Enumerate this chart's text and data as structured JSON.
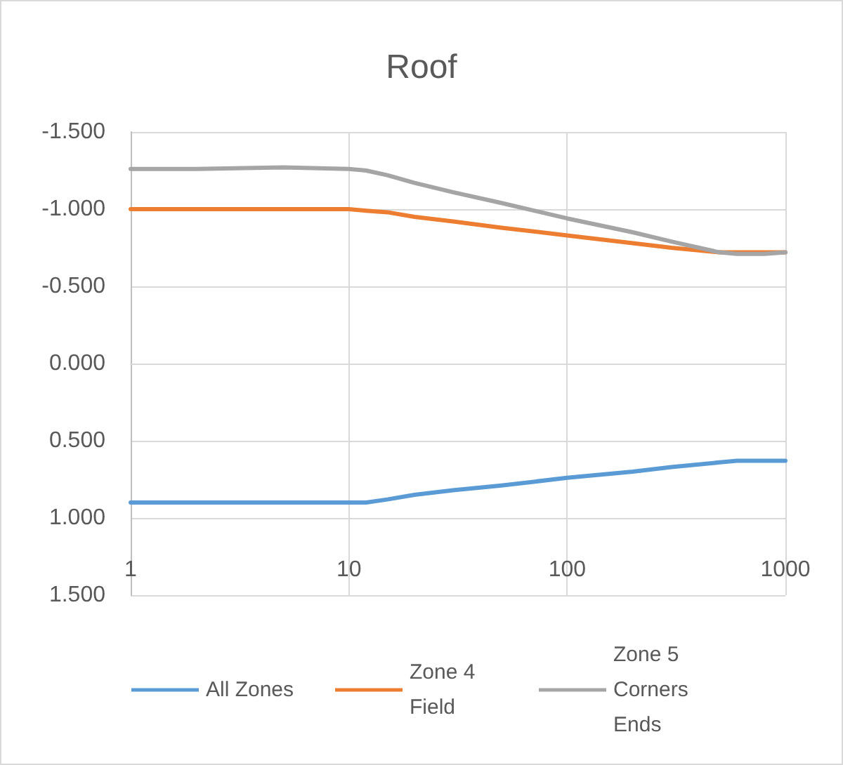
{
  "chart_data": {
    "type": "line",
    "title": "Roof",
    "log": "x",
    "grid": true,
    "legend": "bottom",
    "marker": "none",
    "line_style": "solid",
    "x": [
      1,
      2,
      5,
      10,
      12,
      15,
      20,
      30,
      50,
      100,
      200,
      300,
      500,
      600,
      800,
      1000
    ],
    "xlim": [
      1,
      1000
    ],
    "xticks": [
      1,
      10,
      100,
      1000
    ],
    "ylim": [
      1.5,
      -1.5
    ],
    "yticks": [
      {
        "value": -1.5,
        "label": "-1.500"
      },
      {
        "value": -1,
        "label": "-1.000"
      },
      {
        "value": -0.5,
        "label": "-0.500"
      },
      {
        "value": 0,
        "label": "0.000"
      },
      {
        "value": 0.5,
        "label": "0.500"
      },
      {
        "value": 1,
        "label": "1.000"
      },
      {
        "value": 1.5,
        "label": "1.500"
      }
    ],
    "series": [
      {
        "name": "All Zones",
        "color": "#5b9bd5",
        "values": [
          0.9,
          0.9,
          0.9,
          0.9,
          0.9,
          0.88,
          0.85,
          0.82,
          0.79,
          0.74,
          0.7,
          0.67,
          0.64,
          0.63,
          0.63,
          0.63
        ]
      },
      {
        "name": "Zone 4 Field",
        "color": "#ed7d31",
        "values": [
          -1.0,
          -1.0,
          -1.0,
          -1.0,
          -0.99,
          -0.98,
          -0.95,
          -0.92,
          -0.88,
          -0.83,
          -0.78,
          -0.75,
          -0.72,
          -0.72,
          -0.72,
          -0.72
        ]
      },
      {
        "name": "Zone 5 Corners Ends",
        "color": "#a5a5a5",
        "values": [
          -1.26,
          -1.26,
          -1.27,
          -1.26,
          -1.25,
          -1.22,
          -1.17,
          -1.11,
          -1.04,
          -0.94,
          -0.85,
          -0.79,
          -0.72,
          -0.71,
          -0.71,
          -0.72
        ]
      }
    ]
  }
}
